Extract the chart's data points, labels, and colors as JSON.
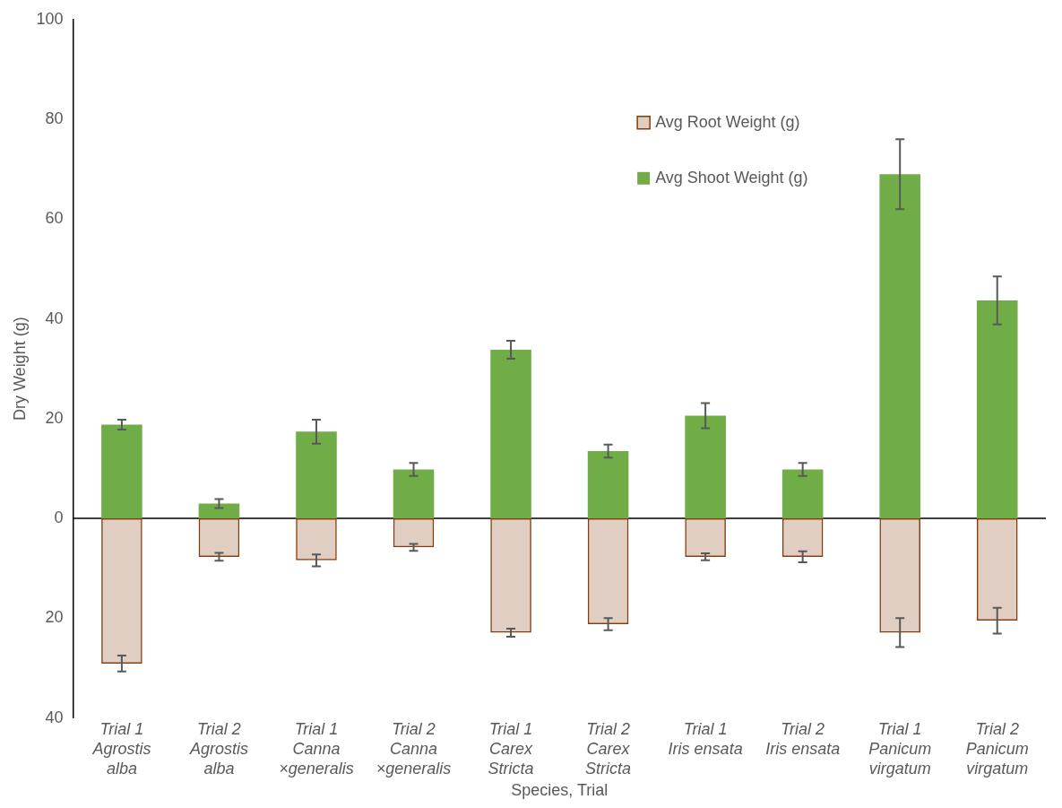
{
  "chart_data": {
    "type": "bar",
    "stacked": true,
    "xlabel": "Species, Trial",
    "ylabel": "Dry Weight (g)",
    "categories": [
      "Trial 1 Agrostis alba",
      "Trial 2 Agrostis alba",
      "Trial 1 Canna ×generalis",
      "Trial 2 Canna ×generalis",
      "Trial 1 Carex Stricta",
      "Trial 2 Carex Stricta",
      "Trial 1 Iris ensata",
      "Trial 2 Iris ensata",
      "Trial 1 Panicum virgatum",
      "Trial 2 Panicum virgatum"
    ],
    "series": [
      {
        "name": "Avg Root Weight (g)",
        "color": "#843c0c",
        "values": [
          -29.1,
          -7.7,
          -8.4,
          -5.8,
          -22.9,
          -21.2,
          -7.7,
          -7.7,
          -22.9,
          -20.5
        ],
        "errors": [
          1.6,
          0.8,
          1.2,
          0.7,
          0.8,
          1.2,
          0.7,
          1.1,
          2.9,
          2.6
        ]
      },
      {
        "name": "Avg Shoot Weight (g)",
        "color": "#70ad47",
        "values": [
          18.8,
          3.0,
          17.4,
          9.8,
          33.8,
          13.5,
          20.6,
          9.8,
          69.0,
          43.7
        ],
        "errors": [
          1.0,
          0.9,
          2.4,
          1.3,
          1.8,
          1.3,
          2.5,
          1.3,
          7.0,
          4.8
        ]
      }
    ],
    "ylim": [
      -40,
      100
    ],
    "yticks": [
      {
        "value": -40,
        "label": "40"
      },
      {
        "value": -20,
        "label": "20"
      },
      0,
      20,
      40,
      60,
      80,
      100
    ],
    "ref_lines": [
      {
        "axis": "y",
        "value": 0,
        "color": "#000000"
      }
    ],
    "grid": false,
    "legend": "top right"
  }
}
